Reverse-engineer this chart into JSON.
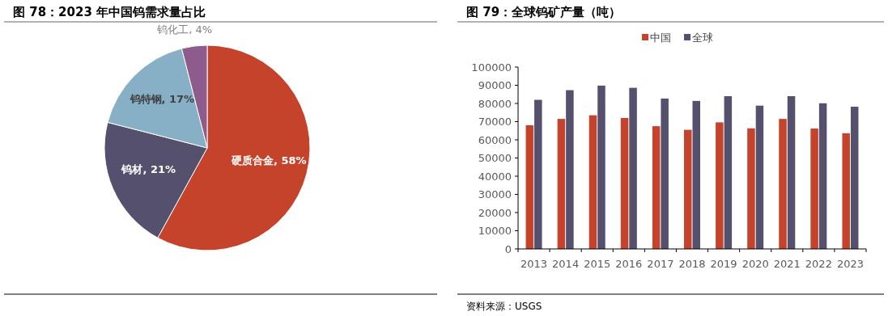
{
  "chart_data": [
    {
      "type": "pie",
      "title": "图 78：2023 年中国钨需求量占比",
      "categories": [
        "硬质合金",
        "钨材",
        "钨特钢",
        "钨化工"
      ],
      "values": [
        58,
        21,
        17,
        4
      ],
      "value_labels": [
        "58%",
        "21%",
        "17%",
        "4%"
      ],
      "colors": [
        "#c5432a",
        "#56506f",
        "#87afc5",
        "#8d5c8d"
      ]
    },
    {
      "type": "bar",
      "title": "图 79：全球钨矿产量（吨）",
      "categories": [
        "2013",
        "2014",
        "2015",
        "2016",
        "2017",
        "2018",
        "2019",
        "2020",
        "2021",
        "2022",
        "2023"
      ],
      "series": [
        {
          "name": "中国",
          "color": "#c5432a",
          "values": [
            68000,
            71500,
            73500,
            72000,
            67500,
            65500,
            69600,
            66300,
            71500,
            66200,
            63600
          ]
        },
        {
          "name": "全球",
          "color": "#56506f",
          "values": [
            82000,
            87300,
            89800,
            88600,
            82700,
            81400,
            84000,
            78800,
            84000,
            80100,
            78200
          ]
        }
      ],
      "ylim": [
        0,
        100000
      ],
      "yticks": [
        0,
        10000,
        20000,
        30000,
        40000,
        50000,
        60000,
        70000,
        80000,
        90000,
        100000
      ],
      "grid": false,
      "legend": "top",
      "annotations": [
        "资料来源：USGS"
      ]
    }
  ]
}
